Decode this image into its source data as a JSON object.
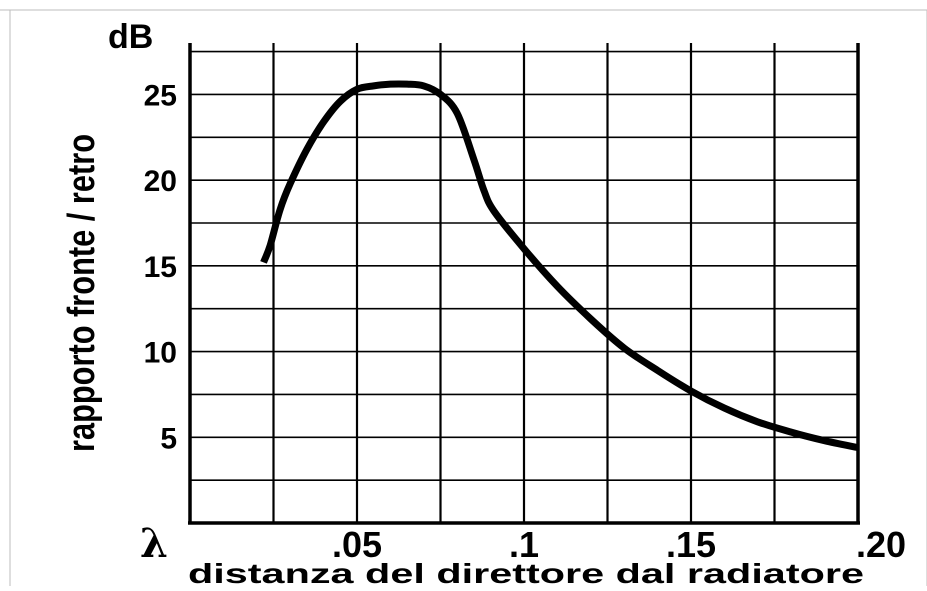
{
  "chart_data": {
    "type": "line",
    "title": "",
    "xlabel": "distanza del direttore dal radiatore",
    "ylabel": "rapporto fronte / retro",
    "y_unit": "dB",
    "x_unit": "λ",
    "xlim": [
      0.0,
      0.2
    ],
    "ylim": [
      0,
      28
    ],
    "x_ticks": [
      0.05,
      0.1,
      0.15,
      0.2
    ],
    "x_tick_labels": [
      ".05",
      ".1",
      ".15",
      ".20"
    ],
    "y_ticks": [
      5,
      10,
      15,
      20,
      25
    ],
    "y_tick_labels": [
      "5",
      "10",
      "15",
      "20",
      "25"
    ],
    "grid": true,
    "x_grid_step": 0.025,
    "y_grid_step": 2.5,
    "series": [
      {
        "color": "#000000",
        "x": [
          0.022,
          0.024,
          0.027,
          0.03,
          0.035,
          0.04,
          0.045,
          0.05,
          0.055,
          0.06,
          0.065,
          0.07,
          0.075,
          0.08,
          0.085,
          0.088,
          0.091,
          0.1,
          0.11,
          0.12,
          0.13,
          0.14,
          0.15,
          0.16,
          0.17,
          0.18,
          0.19,
          0.2
        ],
        "y": [
          15.2,
          16.2,
          18.3,
          19.8,
          21.8,
          23.4,
          24.6,
          25.3,
          25.5,
          25.6,
          25.6,
          25.5,
          25.0,
          23.9,
          21.2,
          19.4,
          18.2,
          16.0,
          13.8,
          11.9,
          10.2,
          8.9,
          7.7,
          6.7,
          5.9,
          5.3,
          4.8,
          4.4
        ]
      }
    ]
  }
}
